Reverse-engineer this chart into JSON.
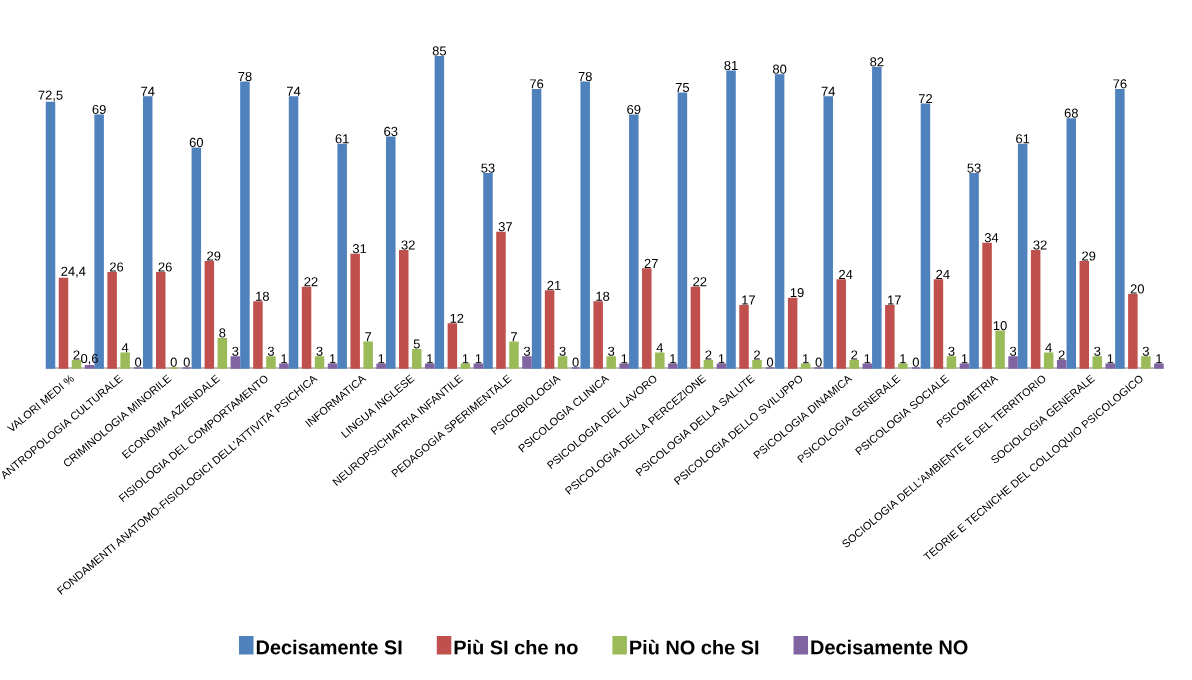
{
  "chart_data": {
    "type": "bar",
    "categories": [
      "VALORI MEDI %",
      "ANTROPOLOGIA CULTURALE",
      "CRIMINOLOGIA MINORILE",
      "ECONOMIA AZIENDALE",
      "FISIOLOGIA DEL COMPORTAMENTO",
      "FONDAMENTI ANATOMO-FISIOLOGICI DELL'ATTIVITA' PSICHICA",
      "INFORMATICA",
      "LINGUA INGLESE",
      "NEUROPSICHIATRIA INFANTILE",
      "PEDAGOGIA SPERIMENTALE",
      "PSICOBIOLOGIA",
      "PSICOLOGIA CLINICA",
      "PSICOLOGIA DEL LAVORO",
      "PSICOLOGIA DELLA PERCEZIONE",
      "PSICOLOGIA DELLA SALUTE",
      "PSICOLOGIA DELLO SVILUPPO",
      "PSICOLOGIA DINAMICA",
      "PSICOLOGIA GENERALE",
      "PSICOLOGIA SOCIALE",
      "PSICOMETRIA",
      "SOCIOLOGIA DELL'AMBIENTE E DEL TERRITORIO",
      "SOCIOLOGIA GENERALE",
      "TEORIE E TECNICHE DEL COLLOQUIO PSICOLOGICO"
    ],
    "series": [
      {
        "name": "Decisamente SI",
        "color": "#4f81bd",
        "values": [
          72.5,
          69,
          74,
          60,
          78,
          74,
          61,
          63,
          85,
          53,
          76,
          78,
          69,
          75,
          81,
          80,
          74,
          82,
          72,
          53,
          61,
          68,
          76
        ],
        "value_labels": [
          "72,5",
          "69",
          "74",
          "60",
          "78",
          "74",
          "61",
          "63",
          "85",
          "53",
          "76",
          "78",
          "69",
          "75",
          "81",
          "80",
          "74",
          "82",
          "72",
          "53",
          "61",
          "68",
          "76"
        ]
      },
      {
        "name": "Più SI che no",
        "color": "#c0504d",
        "values": [
          24.4,
          26,
          26,
          29,
          18,
          22,
          31,
          32,
          12,
          37,
          21,
          18,
          27,
          22,
          17,
          19,
          24,
          17,
          24,
          34,
          32,
          29,
          20
        ],
        "value_labels": [
          "24,4",
          "26",
          "26",
          "29",
          "18",
          "22",
          "31",
          "32",
          "12",
          "37",
          "21",
          "18",
          "27",
          "22",
          "17",
          "19",
          "24",
          "17",
          "24",
          "34",
          "32",
          "29",
          "20"
        ]
      },
      {
        "name": "Più NO che SI",
        "color": "#9bbb59",
        "values": [
          2,
          4,
          0,
          8,
          3,
          3,
          7,
          5,
          1,
          7,
          3,
          3,
          4,
          2,
          2,
          1,
          2,
          1,
          3,
          10,
          4,
          3,
          3
        ],
        "value_labels": [
          "2",
          "4",
          "0",
          "8",
          "3",
          "3",
          "7",
          "5",
          "1",
          "7",
          "3",
          "3",
          "4",
          "2",
          "2",
          "1",
          "2",
          "1",
          "3",
          "10",
          "4",
          "3",
          "3"
        ]
      },
      {
        "name": "Decisamente NO",
        "color": "#8064a2",
        "values": [
          0.6,
          0,
          0,
          3,
          1,
          1,
          1,
          1,
          1,
          3,
          0,
          1,
          1,
          1,
          0,
          0,
          1,
          0,
          1,
          3,
          2,
          1,
          1
        ],
        "value_labels": [
          "0,6",
          "0",
          "0",
          "3",
          "1",
          "1",
          "1",
          "1",
          "1",
          "3",
          "0",
          "1",
          "1",
          "1",
          "0",
          "0",
          "1",
          "0",
          "1",
          "3",
          "2",
          "1",
          "1"
        ]
      }
    ],
    "legend": "bottom"
  }
}
